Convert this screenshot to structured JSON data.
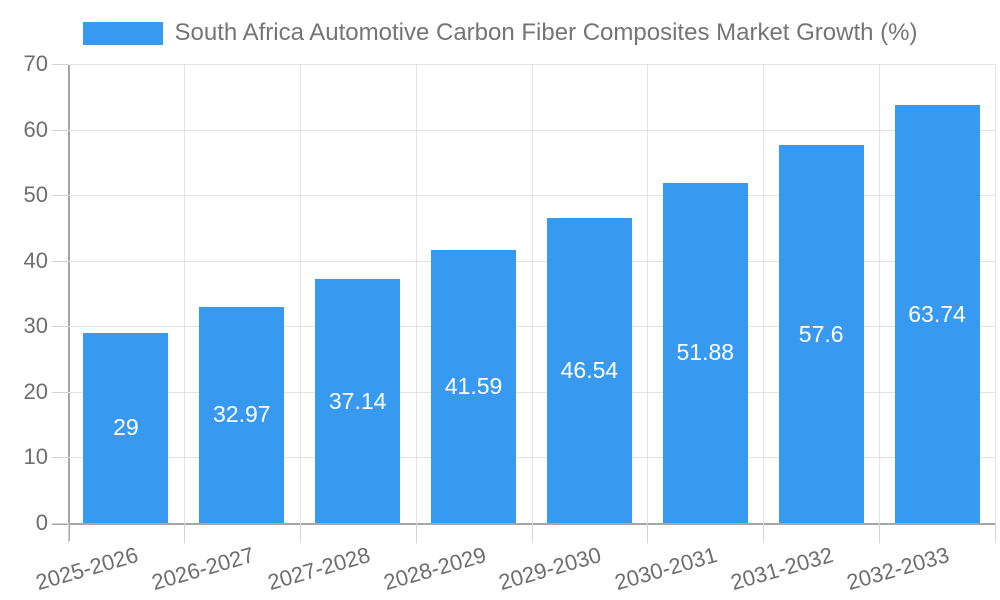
{
  "chart_data": {
    "type": "bar",
    "title": "South Africa Automotive Carbon Fiber Composites Market Growth (%)",
    "categories": [
      "2025-2026",
      "2026-2027",
      "2027-2028",
      "2028-2029",
      "2029-2030",
      "2030-2031",
      "2031-2032",
      "2032-2033"
    ],
    "values": [
      29,
      32.97,
      37.14,
      41.59,
      46.54,
      51.88,
      57.6,
      63.74
    ],
    "value_labels": [
      "29",
      "32.97",
      "37.14",
      "41.59",
      "46.54",
      "51.88",
      "57.6",
      "63.74"
    ],
    "xlabel": "",
    "ylabel": "",
    "ylim": [
      0,
      70
    ],
    "y_ticks": [
      0,
      10,
      20,
      30,
      40,
      50,
      60,
      70
    ],
    "grid": true,
    "legend_position": "top-center",
    "x_tick_rotation_deg": -16,
    "bar_label_position": "center-inside"
  },
  "colors": {
    "bar": "#3899f0",
    "value_label": "#ffffff",
    "tick_label": "#6e6e6e",
    "legend_text": "#757575",
    "gridline": "#e3e3e3",
    "axis_line": "#a6a6a6",
    "tick_mark": "#d2d2d2",
    "background": "#ffffff"
  }
}
